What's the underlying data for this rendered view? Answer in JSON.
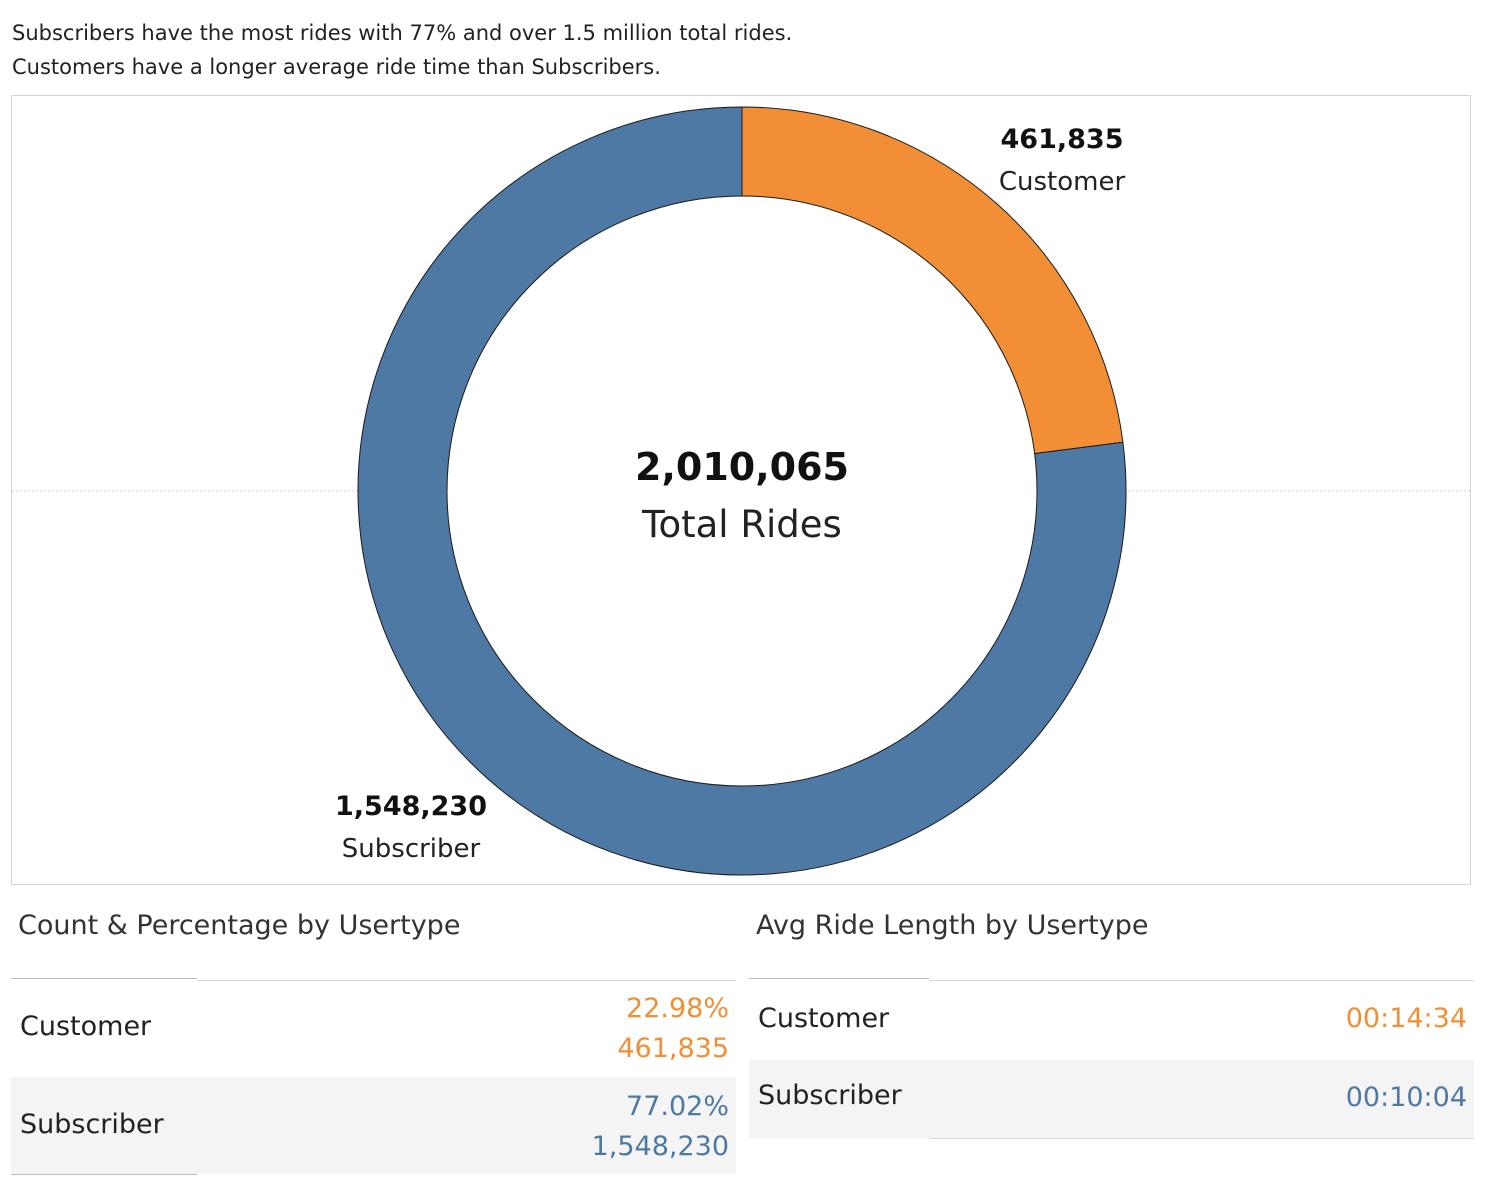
{
  "caption": {
    "line1": "Subscribers have the most rides with 77% and over 1.5 million total rides.",
    "line2": "Customers have a longer average ride time than Subscribers."
  },
  "colors": {
    "customer": "#f28e35",
    "subscriber": "#4e79a5"
  },
  "chart_data": {
    "type": "pie",
    "categories": [
      "Customer",
      "Subscriber"
    ],
    "values": [
      461835,
      1548230
    ],
    "value_labels": [
      "461,835",
      "1,548,230"
    ],
    "colors": [
      "#f28e35",
      "#4e79a5"
    ],
    "center_value": "2,010,065",
    "center_label": "Total Rides"
  },
  "count_table": {
    "title": "Count & Percentage by Usertype",
    "rows": [
      {
        "label": "Customer",
        "percent": "22.98%",
        "count": "461,835"
      },
      {
        "label": "Subscriber",
        "percent": "77.02%",
        "count": "1,548,230"
      }
    ]
  },
  "avg_table": {
    "title": "Avg Ride Length by Usertype",
    "rows": [
      {
        "label": "Customer",
        "value": "00:14:34"
      },
      {
        "label": "Subscriber",
        "value": "00:10:04"
      }
    ]
  }
}
